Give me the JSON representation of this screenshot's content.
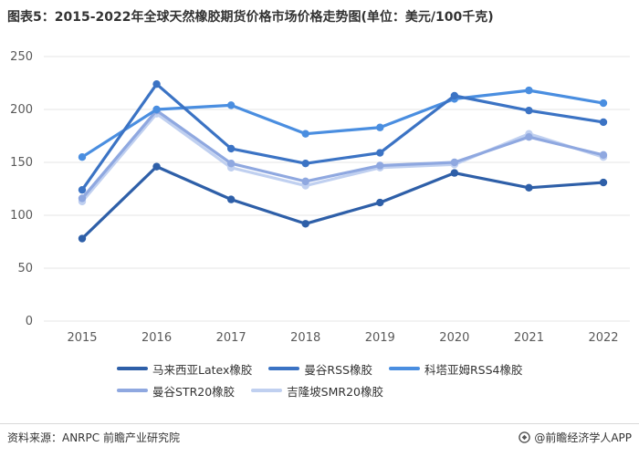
{
  "title": "图表5：2015-2022年全球天然橡胶期货价格市场价格走势图(单位：美元/100千克)",
  "source": "资料来源：ANRPC 前瞻产业研究院",
  "brand": "@前瞻经济学人APP",
  "colors": {
    "grid": "#e6e6e6",
    "axis_text": "#595959"
  },
  "chart_data": {
    "type": "line",
    "title": "图表5：2015-2022年全球天然橡胶期货价格市场价格走势图(单位：美元/100千克)",
    "xlabel": "",
    "ylabel": "",
    "x": [
      "2015",
      "2016",
      "2017",
      "2018",
      "2019",
      "2020",
      "2021",
      "2022"
    ],
    "ylim": [
      0,
      250
    ],
    "yticks": [
      0,
      50,
      100,
      150,
      200,
      250
    ],
    "grid": true,
    "legend_position": "bottom",
    "series": [
      {
        "name": "马来西亚Latex橡胶",
        "color": "#2e5fa8",
        "values": [
          78,
          146,
          115,
          92,
          112,
          140,
          126,
          131
        ]
      },
      {
        "name": "曼谷RSS橡胶",
        "color": "#3b73c4",
        "values": [
          124,
          224,
          163,
          149,
          159,
          213,
          199,
          188
        ]
      },
      {
        "name": "科塔亚姆RSS4橡胶",
        "color": "#4a8ee0",
        "values": [
          155,
          200,
          204,
          177,
          183,
          210,
          218,
          206
        ]
      },
      {
        "name": "曼谷STR20橡胶",
        "color": "#8fa8e0",
        "values": [
          116,
          199,
          149,
          132,
          147,
          150,
          174,
          157
        ]
      },
      {
        "name": "吉隆坡SMR20橡胶",
        "color": "#c0d0f0",
        "values": [
          113,
          196,
          145,
          128,
          145,
          148,
          177,
          155
        ]
      }
    ]
  }
}
